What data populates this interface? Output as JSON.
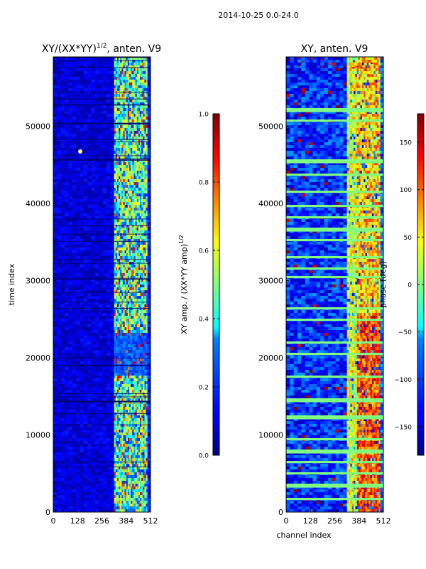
{
  "suptitle": "2014-10-25 0.0-24.0",
  "chart_data": [
    {
      "type": "heatmap",
      "title_main": "XY/(XX*YY)",
      "title_sup": "1/2",
      "title_rest": ", anten. V9",
      "ylabel": "time index",
      "xlabel": "",
      "xlim": [
        0,
        512
      ],
      "ylim": [
        0,
        59000
      ],
      "xticks": [
        "0",
        "128",
        "256",
        "384",
        "512"
      ],
      "yticks": [
        "0",
        "10000",
        "20000",
        "30000",
        "40000",
        "50000"
      ],
      "colorbar": {
        "label_main": "XY amp. / (XX*YY amp)",
        "label_sup": "1/2",
        "range": [
          0.0,
          1.0
        ],
        "ticks": [
          "0.0",
          "0.2",
          "0.4",
          "0.6",
          "0.8",
          "1.0"
        ]
      },
      "bands": [
        {
          "channels": [
            0,
            320
          ],
          "typical_value": 0.05
        },
        {
          "channels": [
            320,
            496
          ],
          "typical_value": 0.55
        },
        {
          "channels": [
            496,
            512
          ],
          "typical_value": 0.1
        }
      ]
    },
    {
      "type": "heatmap",
      "title": "XY, anten. V9",
      "ylabel": "",
      "xlabel": "channel index",
      "xlim": [
        0,
        512
      ],
      "ylim": [
        0,
        59000
      ],
      "xticks": [
        "0",
        "128",
        "256",
        "384",
        "512"
      ],
      "yticks": [
        "0",
        "10000",
        "20000",
        "30000",
        "40000",
        "50000"
      ],
      "colorbar": {
        "label": "phase (deg)",
        "range": [
          -180,
          180
        ],
        "ticks": [
          "−150",
          "−100",
          "−50",
          "0",
          "50",
          "100",
          "150"
        ]
      },
      "bands": [
        {
          "channels": [
            0,
            320
          ],
          "typical_value": -160
        },
        {
          "channels": [
            320,
            496
          ],
          "typical_value": 90
        },
        {
          "channels": [
            496,
            512
          ],
          "typical_value": -120
        }
      ]
    }
  ],
  "colors": {
    "jet_dark_blue": "#00007f",
    "jet_blue": "#0000ff",
    "jet_cyan": "#00ffff",
    "jet_green": "#7fff7f",
    "jet_yellow": "#ffff00",
    "jet_red": "#ff0000",
    "jet_dark_red": "#7f0000"
  }
}
